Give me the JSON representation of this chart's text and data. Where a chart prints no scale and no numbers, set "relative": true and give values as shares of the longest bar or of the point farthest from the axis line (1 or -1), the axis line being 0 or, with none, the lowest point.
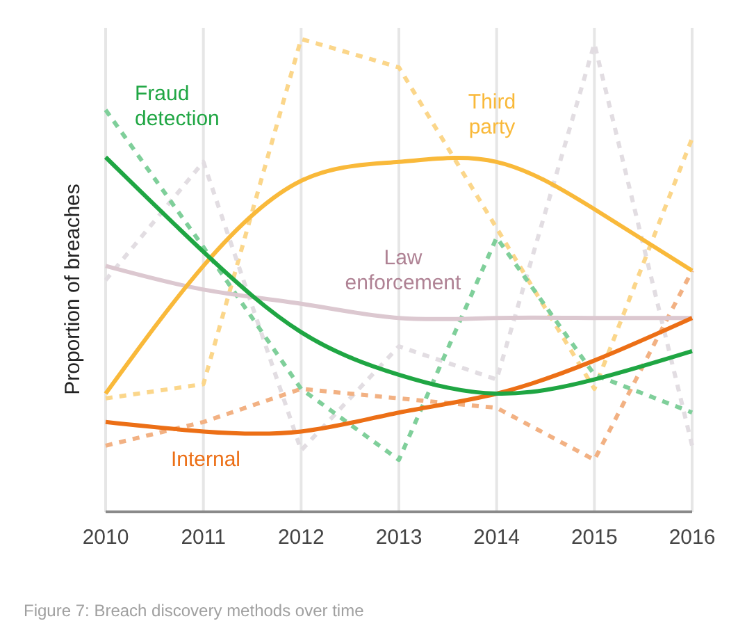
{
  "chart_data": {
    "type": "line",
    "relative": true,
    "ylabel": "Proportion of breaches",
    "x": [
      2010,
      2011,
      2012,
      2013,
      2014,
      2015,
      2016
    ],
    "xlim": [
      2010,
      2016
    ],
    "xticks": [
      2010,
      2011,
      2012,
      2013,
      2014,
      2015,
      2016
    ],
    "grid": "x",
    "marker": "none",
    "series": [
      {
        "color": "#fbd68a",
        "line_style": "dashed",
        "values": [
          0.24,
          0.27,
          1.0,
          0.94,
          0.6,
          0.26,
          0.79
        ]
      },
      {
        "color": "#e2dde2",
        "line_style": "dashed",
        "values": [
          0.49,
          0.74,
          0.13,
          0.35,
          0.28,
          0.99,
          0.14
        ]
      },
      {
        "color": "#f2b183",
        "line_style": "dashed",
        "values": [
          0.14,
          0.19,
          0.26,
          0.24,
          0.22,
          0.11,
          0.51
        ]
      },
      {
        "color": "#7fcf9a",
        "line_style": "dashed",
        "values": [
          0.85,
          0.56,
          0.26,
          0.11,
          0.58,
          0.29,
          0.21
        ]
      },
      {
        "name": "Law enforcement",
        "color": "#dcc8d0",
        "line_style": "solid",
        "values": [
          0.52,
          0.47,
          0.44,
          0.41,
          0.41,
          0.41,
          0.41
        ]
      },
      {
        "name": "Third party",
        "color": "#f9b93a",
        "line_style": "solid",
        "values": [
          0.25,
          0.52,
          0.7,
          0.74,
          0.74,
          0.64,
          0.51
        ]
      },
      {
        "name": "Internal",
        "color": "#ec6f16",
        "line_style": "solid",
        "values": [
          0.19,
          0.17,
          0.17,
          0.21,
          0.25,
          0.32,
          0.41
        ]
      },
      {
        "name": "Fraud detection",
        "color": "#1fa643",
        "line_style": "solid",
        "values": [
          0.75,
          0.55,
          0.38,
          0.29,
          0.25,
          0.28,
          0.34
        ]
      }
    ],
    "annotations": [
      "Figure 7: Breach discovery methods over time"
    ]
  }
}
